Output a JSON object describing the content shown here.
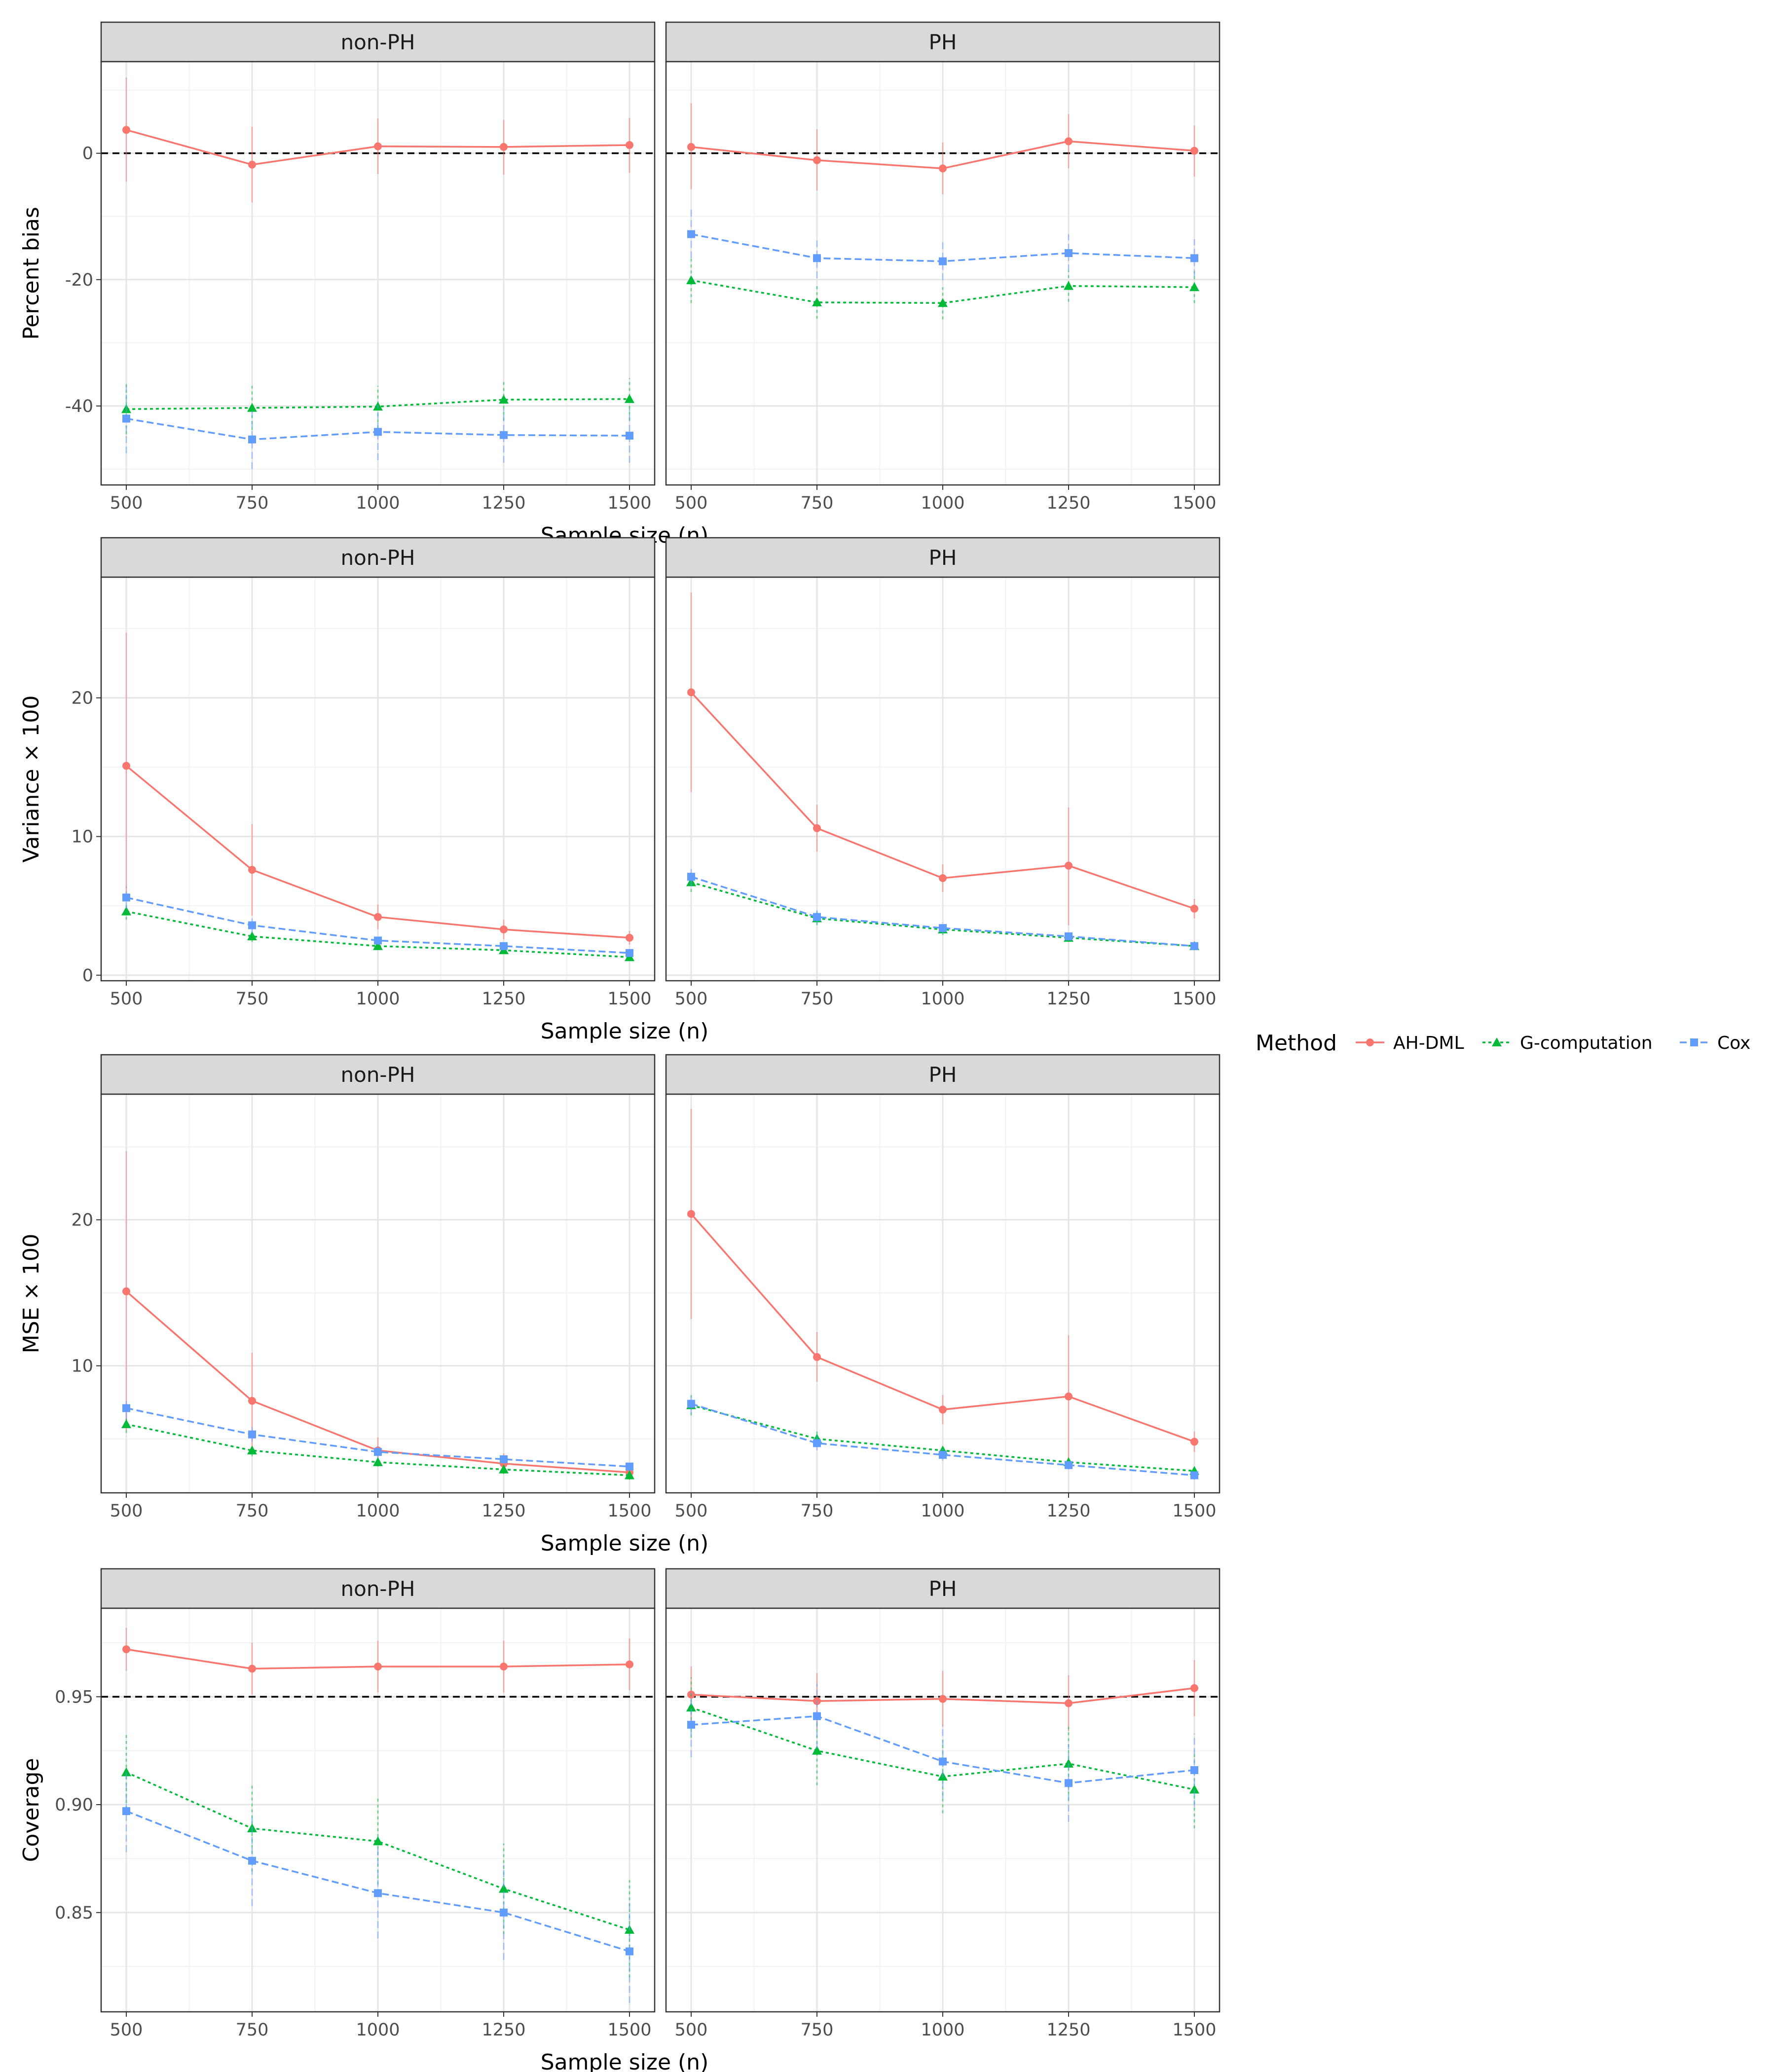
{
  "legend": {
    "title": "Method",
    "items": [
      {
        "label": "AH-DML",
        "color": "#F8766D",
        "shape": "circle",
        "dash": "solid"
      },
      {
        "label": "G-computation",
        "color": "#00BA38",
        "shape": "triangle",
        "dash": "dotted"
      },
      {
        "label": "Cox",
        "color": "#619CFF",
        "shape": "square",
        "dash": "dashed"
      }
    ]
  },
  "facets": [
    "non-PH",
    "PH"
  ],
  "chart_data": [
    {
      "type": "line",
      "ylabel": "Percent bias",
      "xlabel": "Sample size (n)",
      "x": [
        500,
        750,
        1000,
        1250,
        1500
      ],
      "xlim": [
        450,
        1550
      ],
      "ylim": [
        -52.5,
        14.5
      ],
      "yticks": [
        -40,
        -20,
        0
      ],
      "ytick_labels": [
        "-40",
        "-20",
        "0"
      ],
      "reference_line": 0,
      "panels": [
        {
          "facet": "non-PH",
          "series": [
            {
              "name": "AH-DML",
              "values": [
                3.7,
                -1.8,
                1.1,
                1.0,
                1.3
              ],
              "lower": [
                -4.5,
                -7.8,
                -3.3,
                -3.4,
                -3.1
              ],
              "upper": [
                12.0,
                4.2,
                5.5,
                5.3,
                5.6
              ]
            },
            {
              "name": "G-computation",
              "values": [
                -40.5,
                -40.3,
                -40.1,
                -39.0,
                -38.9
              ],
              "lower": [
                -44.5,
                -43.8,
                -43.5,
                -42.3,
                -42.3
              ],
              "upper": [
                -36.3,
                -36.8,
                -36.8,
                -35.8,
                -35.6
              ]
            },
            {
              "name": "Cox",
              "values": [
                -42.0,
                -45.3,
                -44.1,
                -44.6,
                -44.7
              ],
              "lower": [
                -47.5,
                -50.0,
                -48.6,
                -49.0,
                -49.0
              ],
              "upper": [
                -36.8,
                -40.8,
                -39.8,
                -40.3,
                -40.4
              ]
            }
          ]
        },
        {
          "facet": "PH",
          "series": [
            {
              "name": "AH-DML",
              "values": [
                1.0,
                -1.1,
                -2.4,
                1.9,
                0.4
              ],
              "lower": [
                -5.7,
                -5.9,
                -6.5,
                -2.4,
                -3.7
              ],
              "upper": [
                7.9,
                3.8,
                1.7,
                6.2,
                4.4
              ]
            },
            {
              "name": "G-computation",
              "values": [
                -20.1,
                -23.6,
                -23.7,
                -21.0,
                -21.2
              ],
              "lower": [
                -23.7,
                -26.2,
                -26.3,
                -23.5,
                -23.7
              ],
              "upper": [
                -16.6,
                -21.0,
                -21.2,
                -18.6,
                -18.7
              ]
            },
            {
              "name": "Cox",
              "values": [
                -12.8,
                -16.6,
                -17.1,
                -15.8,
                -16.6
              ],
              "lower": [
                -16.6,
                -19.8,
                -20.1,
                -18.7,
                -19.5
              ],
              "upper": [
                -8.8,
                -13.3,
                -14.0,
                -12.8,
                -13.6
              ]
            }
          ]
        }
      ]
    },
    {
      "type": "line",
      "ylabel": "Variance × 100",
      "xlabel": "Sample size (n)",
      "x": [
        500,
        750,
        1000,
        1250,
        1500
      ],
      "xlim": [
        450,
        1550
      ],
      "ylim": [
        -0.4,
        28.7
      ],
      "yticks": [
        0,
        10,
        20
      ],
      "ytick_labels": [
        "0",
        "10",
        "20"
      ],
      "panels": [
        {
          "facet": "non-PH",
          "series": [
            {
              "name": "AH-DML",
              "values": [
                15.1,
                7.6,
                4.2,
                3.3,
                2.7
              ],
              "lower": [
                5.6,
                4.3,
                3.3,
                2.6,
                2.2
              ],
              "upper": [
                24.7,
                10.9,
                5.1,
                4.0,
                3.2
              ]
            },
            {
              "name": "G-computation",
              "values": [
                4.6,
                2.8,
                2.1,
                1.8,
                1.3
              ],
              "lower": [
                4.0,
                2.4,
                1.8,
                1.6,
                1.1
              ],
              "upper": [
                5.2,
                3.2,
                2.4,
                2.0,
                1.5
              ]
            },
            {
              "name": "Cox",
              "values": [
                5.6,
                3.6,
                2.5,
                2.1,
                1.6
              ],
              "lower": [
                4.8,
                3.1,
                2.2,
                1.8,
                1.4
              ],
              "upper": [
                6.4,
                4.1,
                2.8,
                2.4,
                1.8
              ]
            }
          ]
        },
        {
          "facet": "PH",
          "series": [
            {
              "name": "AH-DML",
              "values": [
                20.4,
                10.6,
                7.0,
                7.9,
                4.8
              ],
              "lower": [
                13.2,
                8.9,
                6.0,
                3.6,
                4.1
              ],
              "upper": [
                27.6,
                12.3,
                8.0,
                12.1,
                5.5
              ]
            },
            {
              "name": "G-computation",
              "values": [
                6.7,
                4.1,
                3.3,
                2.7,
                2.1
              ],
              "lower": [
                6.0,
                3.6,
                2.9,
                2.4,
                1.8
              ],
              "upper": [
                7.4,
                4.6,
                3.7,
                3.0,
                2.4
              ]
            },
            {
              "name": "Cox",
              "values": [
                7.1,
                4.2,
                3.4,
                2.8,
                2.1
              ],
              "lower": [
                6.4,
                3.7,
                3.0,
                2.5,
                1.8
              ],
              "upper": [
                7.8,
                4.7,
                3.8,
                3.1,
                2.4
              ]
            }
          ]
        }
      ]
    },
    {
      "type": "line",
      "ylabel": "MSE × 100",
      "xlabel": "Sample size (n)",
      "x": [
        500,
        750,
        1000,
        1250,
        1500
      ],
      "xlim": [
        450,
        1550
      ],
      "ylim": [
        1.3,
        28.6
      ],
      "yticks": [
        10,
        20
      ],
      "ytick_labels": [
        "10",
        "20"
      ],
      "panels": [
        {
          "facet": "non-PH",
          "series": [
            {
              "name": "AH-DML",
              "values": [
                15.1,
                7.6,
                4.2,
                3.3,
                2.7
              ],
              "lower": [
                5.6,
                4.3,
                3.3,
                2.6,
                2.2
              ],
              "upper": [
                24.7,
                10.9,
                5.1,
                4.0,
                3.2
              ]
            },
            {
              "name": "G-computation",
              "values": [
                6.0,
                4.2,
                3.4,
                2.9,
                2.5
              ],
              "lower": [
                5.4,
                3.8,
                3.1,
                2.6,
                2.2
              ],
              "upper": [
                6.6,
                4.6,
                3.7,
                3.2,
                2.8
              ]
            },
            {
              "name": "Cox",
              "values": [
                7.1,
                5.3,
                4.1,
                3.6,
                3.1
              ],
              "lower": [
                6.4,
                4.8,
                3.7,
                3.3,
                2.8
              ],
              "upper": [
                7.8,
                5.8,
                4.5,
                3.9,
                3.4
              ]
            }
          ]
        },
        {
          "facet": "PH",
          "series": [
            {
              "name": "AH-DML",
              "values": [
                20.4,
                10.6,
                7.0,
                7.9,
                4.8
              ],
              "lower": [
                13.2,
                8.9,
                6.0,
                3.6,
                4.1
              ],
              "upper": [
                27.6,
                12.3,
                8.0,
                12.1,
                5.5
              ]
            },
            {
              "name": "G-computation",
              "values": [
                7.3,
                5.0,
                4.2,
                3.4,
                2.8
              ],
              "lower": [
                6.6,
                4.5,
                3.8,
                3.1,
                2.5
              ],
              "upper": [
                8.0,
                5.5,
                4.6,
                3.7,
                3.1
              ]
            },
            {
              "name": "Cox",
              "values": [
                7.4,
                4.7,
                3.9,
                3.2,
                2.5
              ],
              "lower": [
                6.7,
                4.2,
                3.5,
                2.9,
                2.2
              ],
              "upper": [
                8.1,
                5.2,
                4.3,
                3.5,
                2.8
              ]
            }
          ]
        }
      ]
    },
    {
      "type": "line",
      "ylabel": "Coverage",
      "xlabel": "Sample size (n)",
      "x": [
        500,
        750,
        1000,
        1250,
        1500
      ],
      "xlim": [
        450,
        1550
      ],
      "ylim": [
        0.804,
        0.991
      ],
      "yticks": [
        0.85,
        0.9,
        0.95
      ],
      "ytick_labels": [
        "0.85",
        "0.90",
        "0.95"
      ],
      "reference_line": 0.95,
      "panels": [
        {
          "facet": "non-PH",
          "series": [
            {
              "name": "AH-DML",
              "values": [
                0.972,
                0.963,
                0.964,
                0.964,
                0.965
              ],
              "lower": [
                0.962,
                0.951,
                0.952,
                0.952,
                0.953
              ],
              "upper": [
                0.982,
                0.975,
                0.976,
                0.976,
                0.977
              ]
            },
            {
              "name": "G-computation",
              "values": [
                0.915,
                0.889,
                0.883,
                0.861,
                0.842
              ],
              "lower": [
                0.898,
                0.869,
                0.863,
                0.84,
                0.82
              ],
              "upper": [
                0.933,
                0.909,
                0.903,
                0.882,
                0.865
              ]
            },
            {
              "name": "Cox",
              "values": [
                0.897,
                0.874,
                0.859,
                0.85,
                0.832
              ],
              "lower": [
                0.878,
                0.853,
                0.838,
                0.828,
                0.808
              ],
              "upper": [
                0.916,
                0.895,
                0.88,
                0.872,
                0.856
              ]
            }
          ]
        },
        {
          "facet": "PH",
          "series": [
            {
              "name": "AH-DML",
              "values": [
                0.951,
                0.948,
                0.949,
                0.947,
                0.954
              ],
              "lower": [
                0.938,
                0.935,
                0.936,
                0.934,
                0.941
              ],
              "upper": [
                0.964,
                0.961,
                0.962,
                0.96,
                0.967
              ]
            },
            {
              "name": "G-computation",
              "values": [
                0.945,
                0.925,
                0.913,
                0.919,
                0.907
              ],
              "lower": [
                0.931,
                0.909,
                0.896,
                0.902,
                0.889
              ],
              "upper": [
                0.959,
                0.941,
                0.93,
                0.936,
                0.925
              ]
            },
            {
              "name": "Cox",
              "values": [
                0.937,
                0.941,
                0.92,
                0.91,
                0.916
              ],
              "lower": [
                0.922,
                0.926,
                0.903,
                0.892,
                0.899
              ],
              "upper": [
                0.952,
                0.956,
                0.937,
                0.928,
                0.933
              ]
            }
          ]
        }
      ]
    }
  ]
}
